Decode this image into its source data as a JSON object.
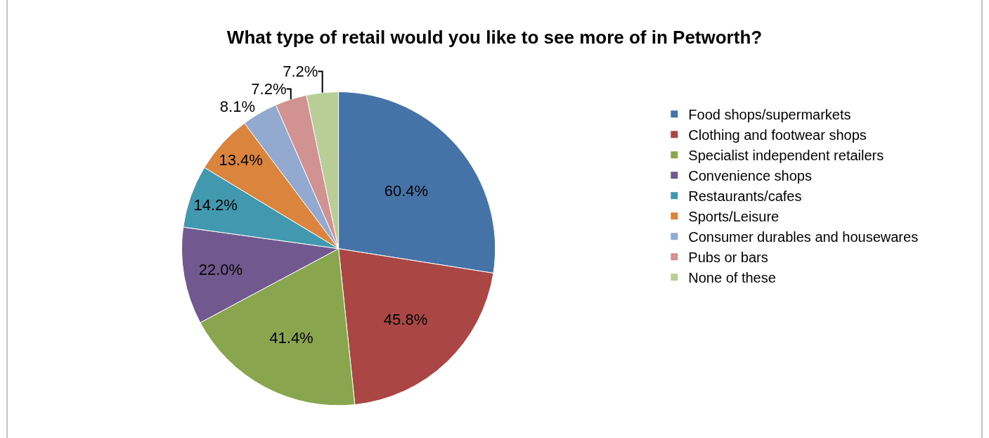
{
  "chart_data": {
    "type": "pie",
    "title": "What type of retail would you like to see more of in Petworth?",
    "categories": [
      "Food shops/supermarkets",
      "Clothing and footwear shops",
      "Specialist independent retailers",
      "Convenience shops",
      "Restaurants/cafes",
      "Sports/Leisure",
      "Consumer durables and housewares",
      "Pubs or bars",
      "None of these"
    ],
    "values": [
      60.4,
      45.8,
      41.4,
      22.0,
      14.2,
      13.4,
      8.1,
      7.2,
      7.2
    ],
    "value_labels": [
      "60.4%",
      "45.8%",
      "41.4%",
      "22.0%",
      "14.2%",
      "13.4%",
      "8.1%",
      "7.2%",
      "7.2%"
    ],
    "colors": [
      "#4572a7",
      "#aa4643",
      "#89a54e",
      "#71588f",
      "#4198af",
      "#db843d",
      "#93a9cf",
      "#d19392",
      "#b9cd96"
    ],
    "legend": "right"
  }
}
